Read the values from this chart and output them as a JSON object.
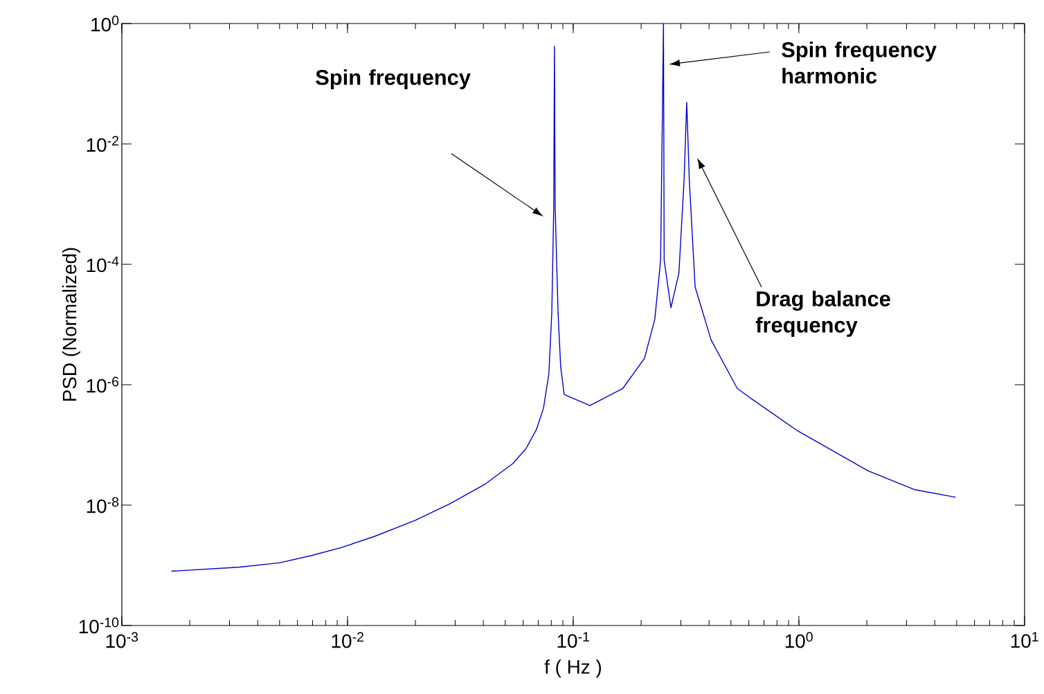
{
  "chart_data": {
    "type": "line",
    "xlabel": "f ( Hz )",
    "ylabel": "PSD (Normalized)",
    "log": "xy",
    "xlim": [
      0.001,
      10
    ],
    "ylim": [
      1e-10,
      1
    ],
    "xticks": [
      {
        "value": 0.001,
        "label": "10$^{-3}$"
      },
      {
        "value": 0.01,
        "label": "10$^{-2}$"
      },
      {
        "value": 0.1,
        "label": "10$^{-1}$"
      },
      {
        "value": 1,
        "label": "10$^{0}$"
      },
      {
        "value": 10,
        "label": "10$^{1}$"
      }
    ],
    "yticks": [
      {
        "value": 1e-10,
        "label": "10$^{-10}$"
      },
      {
        "value": 1e-08,
        "label": "10$^{-8}$"
      },
      {
        "value": 1e-06,
        "label": "10$^{-6}$"
      },
      {
        "value": 0.0001,
        "label": "10$^{-4}$"
      },
      {
        "value": 0.01,
        "label": "10$^{-2}$"
      },
      {
        "value": 1,
        "label": "10$^{0}$"
      }
    ],
    "annotations": [
      "Spin frequency",
      "Spin frequency harmonic",
      "Drag balance frequency"
    ],
    "series": [
      {
        "color": "#0000cd",
        "x": [
          0.00166,
          0.0033,
          0.005,
          0.0069,
          0.0095,
          0.0131,
          0.02,
          0.0284,
          0.0405,
          0.054,
          0.0618,
          0.0687,
          0.0738,
          0.078,
          0.0804,
          0.082,
          0.0826,
          0.0832,
          0.0857,
          0.088,
          0.0912,
          0.1186,
          0.166,
          0.207,
          0.23,
          0.244,
          0.2512,
          0.253,
          0.271,
          0.294,
          0.31,
          0.3185,
          0.327,
          0.347,
          0.408,
          0.533,
          0.614,
          0.99,
          2.03,
          3.27,
          4.95
        ],
        "values": [
          8e-10,
          9.3e-10,
          1.1e-09,
          1.45e-09,
          2e-09,
          3e-09,
          5.6e-09,
          1.05e-08,
          2.2e-08,
          4.9e-08,
          8.7e-08,
          1.8e-07,
          4e-07,
          1.5e-06,
          1.6e-05,
          0.00088,
          0.42,
          0.00088,
          1.6e-05,
          2e-06,
          6.9e-07,
          4.5e-07,
          8.7e-07,
          2.74e-06,
          1.23e-05,
          0.000117,
          1,
          0.000117,
          1.9e-05,
          7.1e-05,
          0.0025,
          0.049,
          0.0025,
          4.2e-05,
          5.6e-06,
          8.7e-07,
          5.9e-07,
          1.7e-07,
          3.7e-08,
          1.8e-08,
          1.35e-08
        ]
      }
    ]
  }
}
